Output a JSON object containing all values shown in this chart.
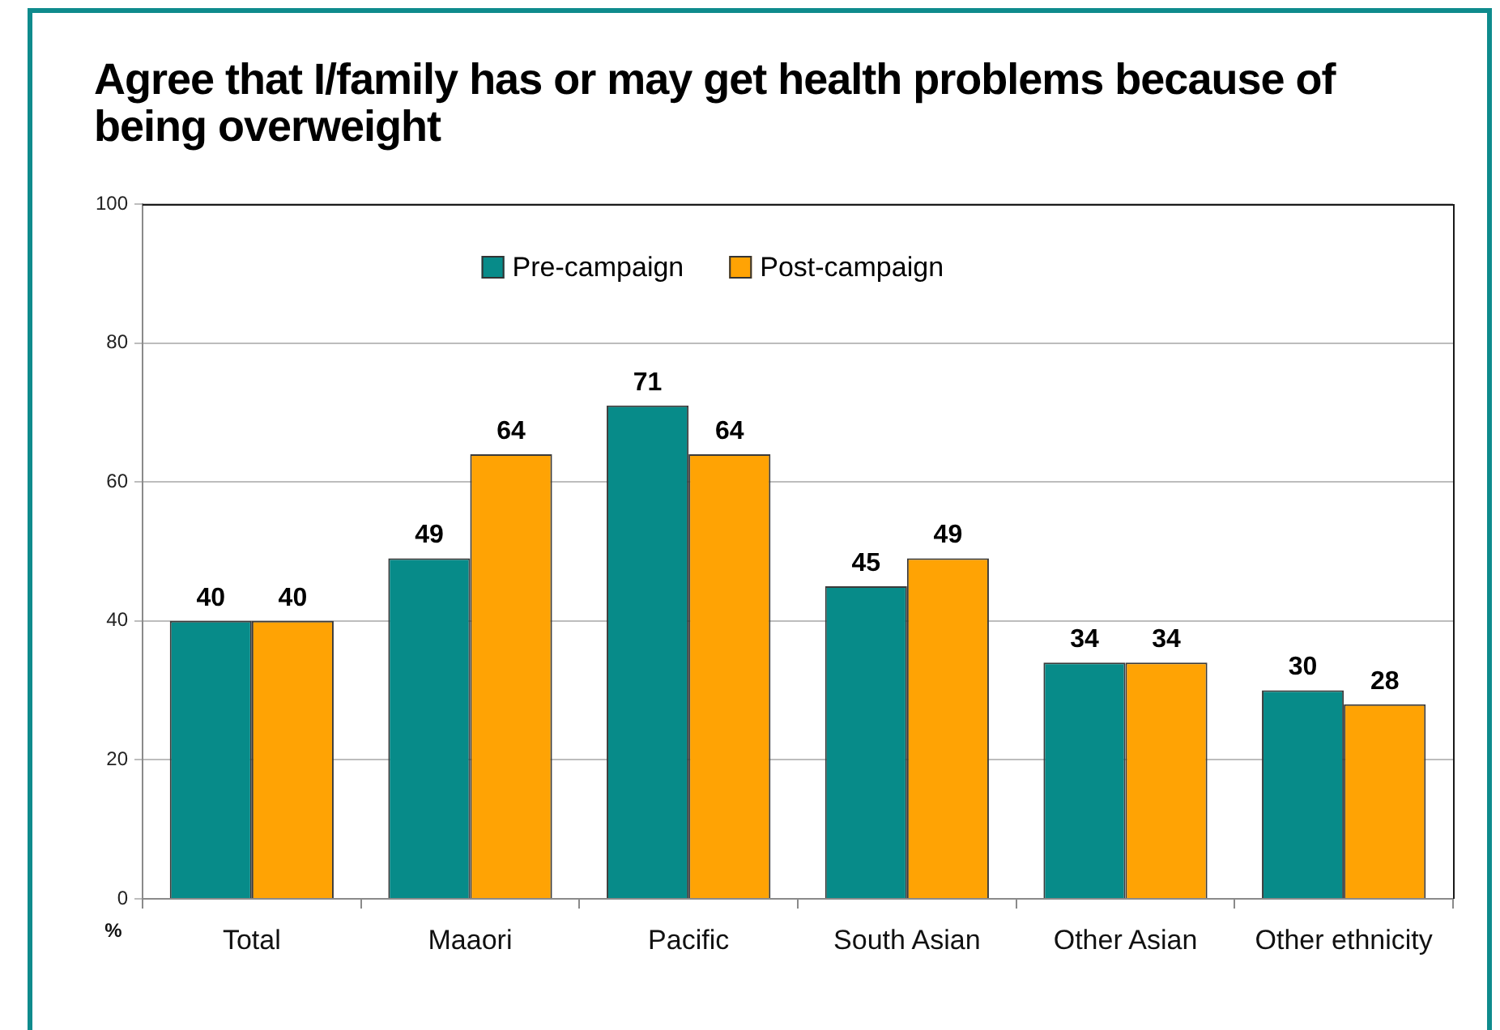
{
  "chart_data": {
    "type": "bar",
    "title": "Agree that I/family has or may get health problems because of being overweight",
    "ylabel": "%",
    "categories": [
      "Total",
      "Maaori",
      "Pacific",
      "South Asian",
      "Other Asian",
      "Other ethnicity"
    ],
    "series": [
      {
        "name": "Pre-campaign",
        "color": "#078b89",
        "values": [
          40,
          49,
          71,
          45,
          34,
          30
        ]
      },
      {
        "name": "Post-campaign",
        "color": "#ffa304",
        "values": [
          40,
          64,
          64,
          49,
          34,
          28
        ]
      }
    ],
    "ylim": [
      0,
      100
    ],
    "yticks": [
      0,
      20,
      40,
      60,
      80,
      100
    ],
    "grid": "y",
    "legend": "top",
    "data_labels": true
  }
}
